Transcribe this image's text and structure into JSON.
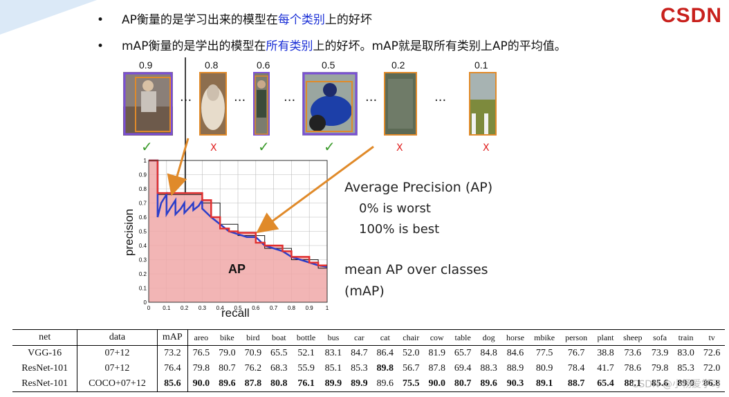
{
  "logo": "CSDN",
  "bullets": [
    {
      "pre": "AP衡量的是学习出来的模型在",
      "hl": "每个类别",
      "post": "上的好坏"
    },
    {
      "pre": "mAP衡量的是学出的模型在",
      "hl": "所有类别",
      "post": "上的好坏。mAP就是取所有类别上AP的平均值。"
    }
  ],
  "detections": [
    {
      "score": "0.9",
      "mark": "✓",
      "correct": true
    },
    {
      "score": "0.8",
      "mark": "X",
      "correct": false
    },
    {
      "score": "0.6",
      "mark": "✓",
      "correct": true
    },
    {
      "score": "0.5",
      "mark": "✓",
      "correct": true
    },
    {
      "score": "0.2",
      "mark": "X",
      "correct": false
    },
    {
      "score": "0.1",
      "mark": "X",
      "correct": false
    }
  ],
  "ellipsis": "...",
  "chart_data": {
    "type": "line",
    "xlabel": "recall",
    "ylabel": "precision",
    "xlim": [
      0,
      1
    ],
    "ylim": [
      0,
      1
    ],
    "xticks": [
      "0",
      "0.1",
      "0.2",
      "0.3",
      "0.4",
      "0.5",
      "0.6",
      "0.7",
      "0.8",
      "0.9",
      "1"
    ],
    "yticks": [
      "0",
      "0.1",
      "0.2",
      "0.3",
      "0.4",
      "0.5",
      "0.6",
      "0.7",
      "0.8",
      "0.9",
      "1"
    ],
    "grid": true,
    "area_label": "AP",
    "series": [
      {
        "color": "#2b3ec9",
        "x": [
          0,
          0.05,
          0.05,
          0.07,
          0.1,
          0.1,
          0.13,
          0.15,
          0.15,
          0.18,
          0.2,
          0.2,
          0.23,
          0.25,
          0.25,
          0.28,
          0.3,
          0.3,
          0.35,
          0.4,
          0.45,
          0.5,
          0.55,
          0.6,
          0.65,
          0.7,
          0.75,
          0.8,
          0.85,
          0.9,
          0.95,
          1
        ],
        "y": [
          1,
          1,
          0.6,
          0.7,
          0.76,
          0.62,
          0.68,
          0.72,
          0.62,
          0.66,
          0.7,
          0.63,
          0.67,
          0.7,
          0.65,
          0.68,
          0.72,
          0.66,
          0.6,
          0.55,
          0.5,
          0.48,
          0.46,
          0.46,
          0.4,
          0.38,
          0.36,
          0.32,
          0.3,
          0.28,
          0.26,
          0.25
        ]
      },
      {
        "color": "#e03030",
        "x": [
          0,
          0.05,
          0.05,
          0.3,
          0.3,
          0.35,
          0.35,
          0.4,
          0.4,
          0.45,
          0.45,
          0.5,
          0.5,
          0.6,
          0.6,
          0.65,
          0.65,
          0.75,
          0.75,
          0.8,
          0.8,
          0.9,
          0.9,
          0.95,
          0.95,
          1
        ],
        "y": [
          1,
          1,
          0.77,
          0.77,
          0.72,
          0.72,
          0.6,
          0.6,
          0.52,
          0.52,
          0.5,
          0.5,
          0.49,
          0.49,
          0.42,
          0.42,
          0.4,
          0.4,
          0.36,
          0.36,
          0.32,
          0.32,
          0.28,
          0.28,
          0.26,
          0.26
        ]
      },
      {
        "color": "#111111",
        "x": [
          0,
          0.05,
          0.05,
          0.3,
          0.3,
          0.4,
          0.4,
          0.5,
          0.5,
          0.65,
          0.65,
          0.8,
          0.8,
          0.95,
          0.95,
          1
        ],
        "y": [
          1,
          1,
          0.76,
          0.76,
          0.7,
          0.7,
          0.55,
          0.55,
          0.47,
          0.47,
          0.38,
          0.38,
          0.3,
          0.3,
          0.24,
          0.24
        ]
      }
    ]
  },
  "ap_text": {
    "title": "Average Precision (AP)",
    "worst": "0%  is worst",
    "best": "100%  is best",
    "mean1": "mean AP over classes",
    "mean2": "(mAP)"
  },
  "table": {
    "headers": [
      "net",
      "data",
      "mAP",
      "areo",
      "bike",
      "bird",
      "boat",
      "bottle",
      "bus",
      "car",
      "cat",
      "chair",
      "cow",
      "table",
      "dog",
      "horse",
      "mbike",
      "person",
      "plant",
      "sheep",
      "sofa",
      "train",
      "tv"
    ],
    "rows": [
      [
        "VGG-16",
        "07+12",
        "73.2",
        "76.5",
        "79.0",
        "70.9",
        "65.5",
        "52.1",
        "83.1",
        "84.7",
        "86.4",
        "52.0",
        "81.9",
        "65.7",
        "84.8",
        "84.6",
        "77.5",
        "76.7",
        "38.8",
        "73.6",
        "73.9",
        "83.0",
        "72.6"
      ],
      [
        "ResNet-101",
        "07+12",
        "76.4",
        "79.8",
        "80.7",
        "76.2",
        "68.3",
        "55.9",
        "85.1",
        "85.3",
        "89.8",
        "56.7",
        "87.8",
        "69.4",
        "88.3",
        "88.9",
        "80.9",
        "78.4",
        "41.7",
        "78.6",
        "79.8",
        "85.3",
        "72.0"
      ],
      [
        "ResNet-101",
        "COCO+07+12",
        "85.6",
        "90.0",
        "89.6",
        "87.8",
        "80.8",
        "76.1",
        "89.9",
        "89.9",
        "89.6",
        "75.5",
        "90.0",
        "80.7",
        "89.6",
        "90.3",
        "89.1",
        "88.7",
        "65.4",
        "88.1",
        "85.6",
        "89.0",
        "86.8"
      ]
    ],
    "bold": [
      [],
      [
        10
      ],
      [
        2,
        3,
        4,
        5,
        6,
        7,
        8,
        9,
        11,
        12,
        13,
        14,
        15,
        16,
        17,
        18,
        19,
        20,
        21,
        22
      ]
    ]
  },
  "watermark": "CSDN @小杨爱学习"
}
